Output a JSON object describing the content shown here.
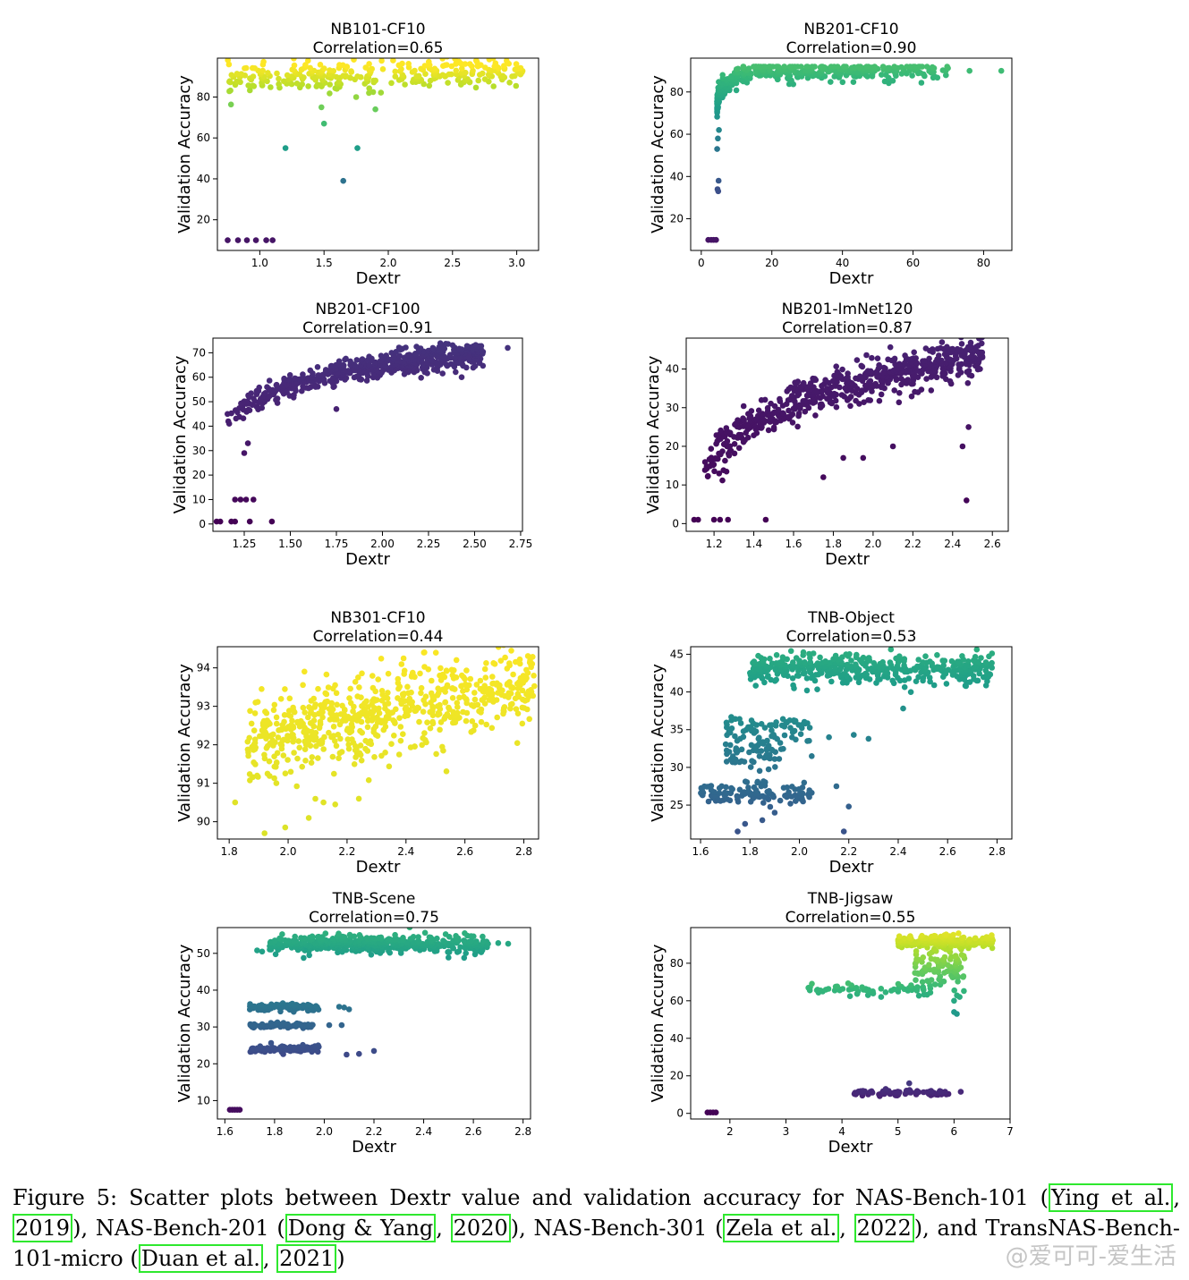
{
  "figure": {
    "panels": [
      {
        "title": "NB101-CF10",
        "subtitle": "Correlation=0.65",
        "xlabel": "Dextr",
        "ylabel": "Validation Accuracy",
        "xticks": [
          1.0,
          1.5,
          2.0,
          2.5,
          3.0
        ],
        "xtick_labels": [
          "1.0",
          "1.5",
          "2.0",
          "2.5",
          "3.0"
        ],
        "yticks": [
          20,
          40,
          60,
          80
        ],
        "ytick_labels": [
          "20",
          "40",
          "60",
          "80"
        ]
      },
      {
        "title": "NB201-CF10",
        "subtitle": "Correlation=0.90",
        "xlabel": "Dextr",
        "ylabel": "Validation Accuracy",
        "xticks": [
          0,
          20,
          40,
          60,
          80
        ],
        "xtick_labels": [
          "0",
          "20",
          "40",
          "60",
          "80"
        ],
        "yticks": [
          20,
          40,
          60,
          80
        ],
        "ytick_labels": [
          "20",
          "40",
          "60",
          "80"
        ]
      },
      {
        "title": "NB201-CF100",
        "subtitle": "Correlation=0.91",
        "xlabel": "Dextr",
        "ylabel": "Validation Accuracy",
        "xticks": [
          1.25,
          1.5,
          1.75,
          2.0,
          2.25,
          2.5,
          2.75
        ],
        "xtick_labels": [
          "1.25",
          "1.50",
          "1.75",
          "2.00",
          "2.25",
          "2.50",
          "2.75"
        ],
        "yticks": [
          0,
          10,
          20,
          30,
          40,
          50,
          60,
          70
        ],
        "ytick_labels": [
          "0",
          "10",
          "20",
          "30",
          "40",
          "50",
          "60",
          "70"
        ]
      },
      {
        "title": "NB201-ImNet120",
        "subtitle": "Correlation=0.87",
        "xlabel": "Dextr",
        "ylabel": "Validation Accuracy",
        "xticks": [
          1.2,
          1.4,
          1.6,
          1.8,
          2.0,
          2.2,
          2.4,
          2.6
        ],
        "xtick_labels": [
          "1.2",
          "1.4",
          "1.6",
          "1.8",
          "2.0",
          "2.2",
          "2.4",
          "2.6"
        ],
        "yticks": [
          0,
          10,
          20,
          30,
          40
        ],
        "ytick_labels": [
          "0",
          "10",
          "20",
          "30",
          "40"
        ]
      },
      {
        "title": "NB301-CF10",
        "subtitle": "Correlation=0.44",
        "xlabel": "Dextr",
        "ylabel": "Validation Accuracy",
        "xticks": [
          1.8,
          2.0,
          2.2,
          2.4,
          2.6,
          2.8
        ],
        "xtick_labels": [
          "1.8",
          "2.0",
          "2.2",
          "2.4",
          "2.6",
          "2.8"
        ],
        "yticks": [
          90,
          91,
          92,
          93,
          94
        ],
        "ytick_labels": [
          "90",
          "91",
          "92",
          "93",
          "94"
        ]
      },
      {
        "title": "TNB-Object",
        "subtitle": "Correlation=0.53",
        "xlabel": "Dextr",
        "ylabel": "Validation Accuracy",
        "xticks": [
          1.6,
          1.8,
          2.0,
          2.2,
          2.4,
          2.6,
          2.8
        ],
        "xtick_labels": [
          "1.6",
          "1.8",
          "2.0",
          "2.2",
          "2.4",
          "2.6",
          "2.8"
        ],
        "yticks": [
          25,
          30,
          35,
          40,
          45
        ],
        "ytick_labels": [
          "25",
          "30",
          "35",
          "40",
          "45"
        ]
      },
      {
        "title": "TNB-Scene",
        "subtitle": "Correlation=0.75",
        "xlabel": "Dextr",
        "ylabel": "Validation Accuracy",
        "xticks": [
          1.6,
          1.8,
          2.0,
          2.2,
          2.4,
          2.6,
          2.8
        ],
        "xtick_labels": [
          "1.6",
          "1.8",
          "2.0",
          "2.2",
          "2.4",
          "2.6",
          "2.8"
        ],
        "yticks": [
          10,
          20,
          30,
          40,
          50
        ],
        "ytick_labels": [
          "10",
          "20",
          "30",
          "40",
          "50"
        ]
      },
      {
        "title": "TNB-Jigsaw",
        "subtitle": "Correlation=0.55",
        "xlabel": "Dextr",
        "ylabel": "Validation Accuracy",
        "xticks": [
          2,
          3,
          4,
          5,
          6,
          7
        ],
        "xtick_labels": [
          "2",
          "3",
          "4",
          "5",
          "6",
          "7"
        ],
        "yticks": [
          0,
          20,
          40,
          60,
          80
        ],
        "ytick_labels": [
          "0",
          "20",
          "40",
          "60",
          "80"
        ]
      }
    ]
  },
  "chart_data": [
    {
      "type": "scatter",
      "title": "NB101-CF10",
      "subtitle": "Correlation=0.65",
      "xlabel": "Dextr",
      "ylabel": "Validation Accuracy",
      "xlim": [
        0.67,
        3.17
      ],
      "ylim": [
        5,
        99
      ],
      "colormap": "viridis",
      "color_scale": [
        5,
        95
      ],
      "clusters": [
        {
          "x_range": [
            0.75,
            3.05
          ],
          "y_center": 90,
          "y_spread": 3.5,
          "n": 300,
          "trend": "rising"
        }
      ],
      "points": [
        [
          0.75,
          10
        ],
        [
          0.83,
          10
        ],
        [
          0.9,
          10
        ],
        [
          0.97,
          10
        ],
        [
          1.05,
          10
        ],
        [
          1.1,
          10
        ],
        [
          1.2,
          55
        ],
        [
          1.76,
          55
        ],
        [
          1.65,
          39
        ],
        [
          1.5,
          67
        ],
        [
          1.48,
          75
        ],
        [
          1.9,
          74
        ],
        [
          1.75,
          80
        ],
        [
          1.85,
          82
        ],
        [
          1.6,
          84
        ],
        [
          1.45,
          86
        ]
      ]
    },
    {
      "type": "scatter",
      "title": "NB201-CF10",
      "subtitle": "Correlation=0.90",
      "xlabel": "Dextr",
      "ylabel": "Validation Accuracy",
      "xlim": [
        -3,
        88
      ],
      "ylim": [
        5,
        96
      ],
      "colormap": "viridis",
      "color_scale": [
        3,
        130
      ],
      "clusters": [
        {
          "curve": "saturating",
          "x_range": [
            4.5,
            70
          ],
          "y_plateau": 90,
          "y_knee": 72,
          "n": 420
        }
      ],
      "points": [
        [
          2,
          10
        ],
        [
          2.8,
          10
        ],
        [
          3.5,
          10
        ],
        [
          4.2,
          10
        ],
        [
          4.6,
          34
        ],
        [
          4.8,
          33
        ],
        [
          4.9,
          38
        ],
        [
          4.5,
          53
        ],
        [
          4.7,
          58
        ],
        [
          5,
          62
        ],
        [
          76,
          90
        ],
        [
          85,
          90
        ],
        [
          52,
          85
        ],
        [
          60,
          91
        ],
        [
          65,
          90
        ]
      ]
    },
    {
      "type": "scatter",
      "title": "NB201-CF100",
      "subtitle": "Correlation=0.91",
      "xlabel": "Dextr",
      "ylabel": "Validation Accuracy",
      "xlim": [
        1.08,
        2.76
      ],
      "ylim": [
        -3,
        76
      ],
      "colormap": "viridis",
      "color_scale": [
        0,
        500
      ],
      "clusters": [
        {
          "curve": "log",
          "x_range": [
            1.15,
            2.55
          ],
          "y_low": 42,
          "y_high": 70,
          "n": 560
        }
      ],
      "points": [
        [
          1.1,
          1
        ],
        [
          1.12,
          1
        ],
        [
          1.18,
          1
        ],
        [
          1.2,
          1
        ],
        [
          1.28,
          1
        ],
        [
          1.4,
          1
        ],
        [
          1.2,
          10
        ],
        [
          1.23,
          10
        ],
        [
          1.26,
          10
        ],
        [
          1.3,
          10
        ],
        [
          1.25,
          29
        ],
        [
          1.27,
          33
        ],
        [
          2.68,
          72
        ],
        [
          2.52,
          69
        ],
        [
          2.43,
          60
        ],
        [
          1.75,
          47
        ]
      ]
    },
    {
      "type": "scatter",
      "title": "NB201-ImNet120",
      "subtitle": "Correlation=0.87",
      "xlabel": "Dextr",
      "ylabel": "Validation Accuracy",
      "xlim": [
        1.06,
        2.68
      ],
      "ylim": [
        -2,
        48
      ],
      "colormap": "viridis",
      "color_scale": [
        0,
        500
      ],
      "clusters": [
        {
          "curve": "log",
          "x_range": [
            1.15,
            2.55
          ],
          "y_low": 14,
          "y_high": 43,
          "n": 600
        }
      ],
      "points": [
        [
          1.1,
          1
        ],
        [
          1.12,
          1
        ],
        [
          1.2,
          1
        ],
        [
          1.23,
          1
        ],
        [
          1.27,
          1
        ],
        [
          1.46,
          1
        ],
        [
          2.47,
          6
        ],
        [
          2.48,
          25
        ],
        [
          2.45,
          20
        ],
        [
          1.75,
          12
        ],
        [
          1.85,
          17
        ],
        [
          1.95,
          17
        ],
        [
          2.1,
          20
        ],
        [
          2.55,
          43
        ]
      ]
    },
    {
      "type": "scatter",
      "title": "NB301-CF10",
      "subtitle": "Correlation=0.44",
      "xlabel": "Dextr",
      "ylabel": "Validation Accuracy",
      "xlim": [
        1.76,
        2.85
      ],
      "ylim": [
        89.55,
        94.55
      ],
      "colormap": "viridis",
      "color_scale": [
        -6,
        95
      ],
      "clusters": [
        {
          "x_range": [
            1.86,
            2.84
          ],
          "y_trend": [
            92.1,
            93.6
          ],
          "y_spread": 0.55,
          "n": 650
        }
      ],
      "points": [
        [
          1.82,
          90.5
        ],
        [
          1.92,
          89.7
        ],
        [
          1.99,
          89.85
        ],
        [
          2.07,
          90.1
        ],
        [
          2.12,
          90.5
        ],
        [
          2.16,
          90.45
        ],
        [
          2.24,
          90.6
        ],
        [
          1.93,
          91.25
        ],
        [
          1.96,
          91
        ],
        [
          1.91,
          93.45
        ]
      ]
    },
    {
      "type": "scatter",
      "title": "TNB-Object",
      "subtitle": "Correlation=0.53",
      "xlabel": "Dextr",
      "ylabel": "Validation Accuracy",
      "xlim": [
        1.56,
        2.86
      ],
      "ylim": [
        20.5,
        46
      ],
      "colormap": "viridis",
      "color_scale": [
        5,
        70
      ],
      "clusters": [
        {
          "x_range": [
            1.8,
            2.78
          ],
          "y_center": 43,
          "y_spread": 1.0,
          "n": 420
        },
        {
          "x_range": [
            1.7,
            2.05
          ],
          "y_center": 35,
          "y_spread": 1.1,
          "n": 70
        },
        {
          "x_range": [
            1.7,
            1.93
          ],
          "y_center": 31.7,
          "y_spread": 0.9,
          "n": 50
        },
        {
          "x_range": [
            1.6,
            2.05
          ],
          "y_center": 26.5,
          "y_spread": 0.7,
          "n": 120
        }
      ],
      "points": [
        [
          2.12,
          34
        ],
        [
          2.22,
          34.3
        ],
        [
          2.28,
          33.8
        ],
        [
          2.05,
          31.5
        ],
        [
          2.15,
          27.5
        ],
        [
          2.2,
          24.8
        ],
        [
          2.18,
          21.5
        ],
        [
          1.75,
          21.5
        ],
        [
          1.78,
          22.5
        ],
        [
          1.85,
          23
        ],
        [
          1.9,
          24
        ],
        [
          2.42,
          37.8
        ]
      ]
    },
    {
      "type": "scatter",
      "title": "TNB-Scene",
      "subtitle": "Correlation=0.75",
      "xlabel": "Dextr",
      "ylabel": "Validation Accuracy",
      "xlim": [
        1.57,
        2.83
      ],
      "ylim": [
        5,
        57
      ],
      "colormap": "viridis",
      "color_scale": [
        5,
        85
      ],
      "clusters": [
        {
          "x_range": [
            1.78,
            2.66
          ],
          "y_center": 52.5,
          "y_spread": 1.2,
          "n": 450
        },
        {
          "x_range": [
            1.7,
            1.98
          ],
          "y_center": 35.4,
          "y_spread": 0.5,
          "n": 90
        },
        {
          "x_range": [
            1.7,
            1.96
          ],
          "y_center": 30.4,
          "y_spread": 0.35,
          "n": 80
        },
        {
          "x_range": [
            1.7,
            1.98
          ],
          "y_center": 24.0,
          "y_spread": 0.5,
          "n": 110
        }
      ],
      "points": [
        [
          1.62,
          7.5
        ],
        [
          1.63,
          7.5
        ],
        [
          1.64,
          7.5
        ],
        [
          1.65,
          7.5
        ],
        [
          1.66,
          7.5
        ],
        [
          2.06,
          35.5
        ],
        [
          2.08,
          35.3
        ],
        [
          2.1,
          34.8
        ],
        [
          2.02,
          30.5
        ],
        [
          2.07,
          30.5
        ],
        [
          2.09,
          22.5
        ],
        [
          2.14,
          22.7
        ],
        [
          2.2,
          23.5
        ],
        [
          1.75,
          50.5
        ],
        [
          1.73,
          50.8
        ],
        [
          2.7,
          52.8
        ],
        [
          2.74,
          52.6
        ]
      ]
    },
    {
      "type": "scatter",
      "title": "TNB-Jigsaw",
      "subtitle": "Correlation=0.55",
      "xlabel": "Dextr",
      "ylabel": "Validation Accuracy",
      "xlim": [
        1.3,
        7.0
      ],
      "ylim": [
        -3,
        99
      ],
      "colormap": "viridis",
      "color_scale": [
        0,
        100
      ],
      "clusters": [
        {
          "x_range": [
            5.0,
            6.7
          ],
          "y_center": 91.5,
          "y_spread": 1.5,
          "n": 260
        },
        {
          "x_range": [
            5.3,
            6.2
          ],
          "y_center": 77,
          "y_spread": 6,
          "n": 110
        },
        {
          "x_range": [
            3.4,
            5.6
          ],
          "y_center": 66,
          "y_spread": 1.3,
          "n": 60
        },
        {
          "x_range": [
            4.2,
            5.9
          ],
          "y_center": 11,
          "y_spread": 0.8,
          "n": 80
        }
      ],
      "points": [
        [
          1.6,
          0.5
        ],
        [
          1.65,
          0.5
        ],
        [
          1.7,
          0.5
        ],
        [
          1.75,
          0.5
        ],
        [
          6.0,
          54
        ],
        [
          6.05,
          53
        ],
        [
          6.0,
          60
        ],
        [
          6.1,
          62
        ],
        [
          6.12,
          11.5
        ],
        [
          5.2,
          16
        ],
        [
          4.55,
          65
        ],
        [
          4.7,
          62
        ]
      ]
    }
  ],
  "caption": {
    "text_1": "Figure 5: Scatter plots between Dextr value and validation accuracy for NAS-Bench-101 (",
    "cite_1a": "Ying et al.",
    "sep_1": ", ",
    "cite_1b": "2019",
    "text_2": "), NAS-Bench-201 (",
    "cite_2a": "Dong & Yang",
    "sep_2": ", ",
    "cite_2b": "2020",
    "text_3": "), NAS-Bench-301 (",
    "cite_3a": "Zela et al.",
    "sep_3": ", ",
    "cite_3b": "2022",
    "text_4": "), and TransNAS-Bench-101-micro (",
    "cite_4a": "Duan et al.",
    "sep_4": ", ",
    "cite_4b": "2021",
    "text_5": ")"
  },
  "watermark": "@爱可可-爱生活",
  "colors": {
    "citation_box": "#2ee82e",
    "text": "#000000",
    "axes": "#000000"
  }
}
